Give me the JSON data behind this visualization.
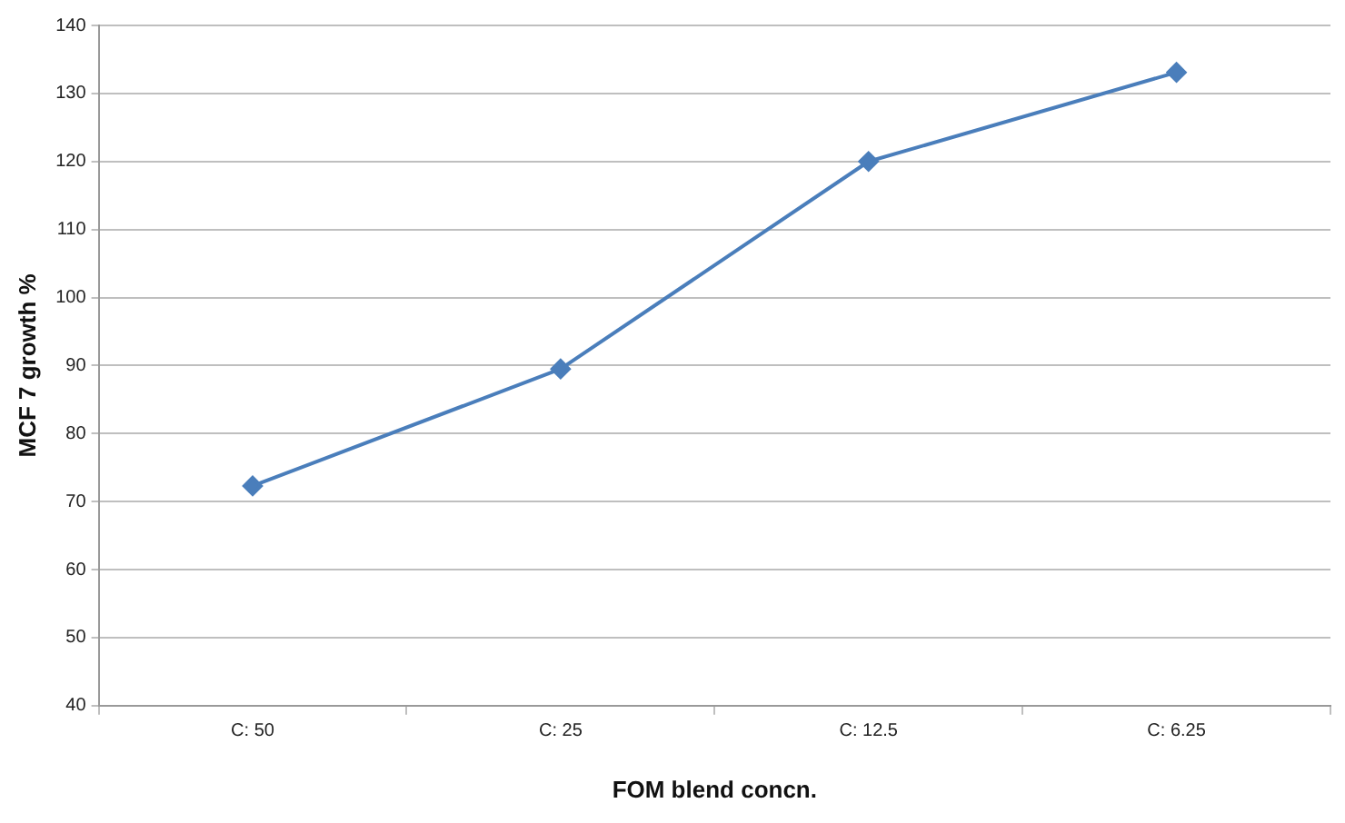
{
  "chart_data": {
    "type": "line",
    "xlabel": "FOM blend concn.",
    "ylabel": "MCF 7 growth %",
    "categories": [
      "C: 50",
      "C: 25",
      "C: 12.5",
      "C: 6.25"
    ],
    "series": [
      {
        "color": "#4a7ebb",
        "values": [
          72.3,
          89.5,
          120,
          133.1
        ]
      }
    ],
    "ylim": [
      40,
      140
    ],
    "yticks": [
      40,
      50,
      60,
      70,
      80,
      90,
      100,
      110,
      120,
      130,
      140
    ],
    "grid": "y",
    "legend": false,
    "marker": "diamond",
    "line_style": "solid"
  }
}
